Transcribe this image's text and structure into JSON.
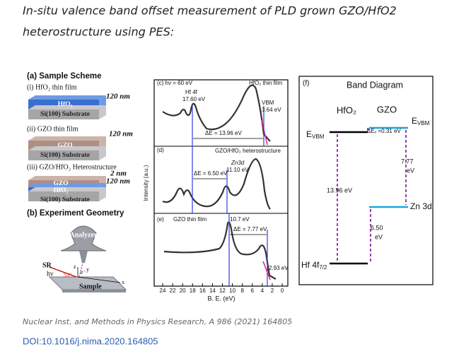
{
  "header": {
    "title_lines": [
      "In-situ valence band offset measurement of PLD grown GZO/HfO2",
      "heterostructure using PES:"
    ]
  },
  "figure": {
    "sample_scheme": {
      "title": "(a) Sample Scheme",
      "i": {
        "label": "(i) HfO₂ thin film",
        "top_layer": "HfO₂",
        "substrate": "Si(100) Substrate",
        "thickness": "120 nm"
      },
      "ii": {
        "label": "(ii) GZO thin film",
        "top_layer": "GZO",
        "substrate": "Si(100) Substrate",
        "thickness": "120 nm"
      },
      "iii": {
        "label": "(iii) GZO/HfO₂ Heterostructure",
        "top_layer": "GZO",
        "middle_layer": "HfO₂",
        "substrate": "Si(100) Substrate",
        "thickness_top": "2 nm",
        "thickness": "120 nm"
      }
    },
    "geometry": {
      "title": "(b) Experiment Geometry",
      "analyzer": "Analyzer",
      "sr": "SR",
      "hv": "hν",
      "z": "z",
      "y": "y",
      "x": "x",
      "angle": "53°",
      "electron": "e⁻",
      "sample": "Sample"
    },
    "spectra": {
      "c": {
        "label": "(c) hν = 60 eV",
        "sample": "HfO₂ thin film",
        "peak": "Hf 4f",
        "peak_energy": "17.60 eV",
        "vbm": "VBM",
        "vbm_energy": "3.64  eV",
        "delta": "ΔE = 13.96 eV"
      },
      "d": {
        "label": "(d)",
        "sample": "GZO/HfO₂ heterostructure",
        "peak": "Zn3d",
        "peak_energy": "11.10 eV",
        "delta": "ΔE = 6.50 eV"
      },
      "e": {
        "label": "(e)",
        "sample": "GZO thin film",
        "peak_energy": "10.7 eV",
        "delta": "ΔE = 7.77 eV",
        "vbm_energy": "2.93 eV"
      },
      "y_label": "Intensity (a.u.)",
      "x_ticks": [
        24,
        22,
        20,
        18,
        16,
        14,
        12,
        10,
        8,
        6,
        4,
        2,
        0
      ],
      "x_label": "B. E. (eV)"
    },
    "band_diagram": {
      "label": "(f)",
      "title": "Band Diagram",
      "left": "HfO₂",
      "right": "GZO",
      "evbm": {
        "main": "E",
        "sub": "VBM"
      },
      "delta_ev": "ΔEᵥ =0.31 eV",
      "gap_right": [
        "7.77",
        "eV"
      ],
      "gap_left": "13.96 eV",
      "zn": "Zn 3d",
      "gap_mid": [
        "6.50",
        "eV"
      ],
      "hf": {
        "main": "Hf 4f",
        "sub": "7/2"
      }
    }
  },
  "citation": "Nuclear Inst. and Methods in Physics Research, A 986 (2021) 164805",
  "doi": "DOI:10.1016/j.nima.2020.164805"
}
